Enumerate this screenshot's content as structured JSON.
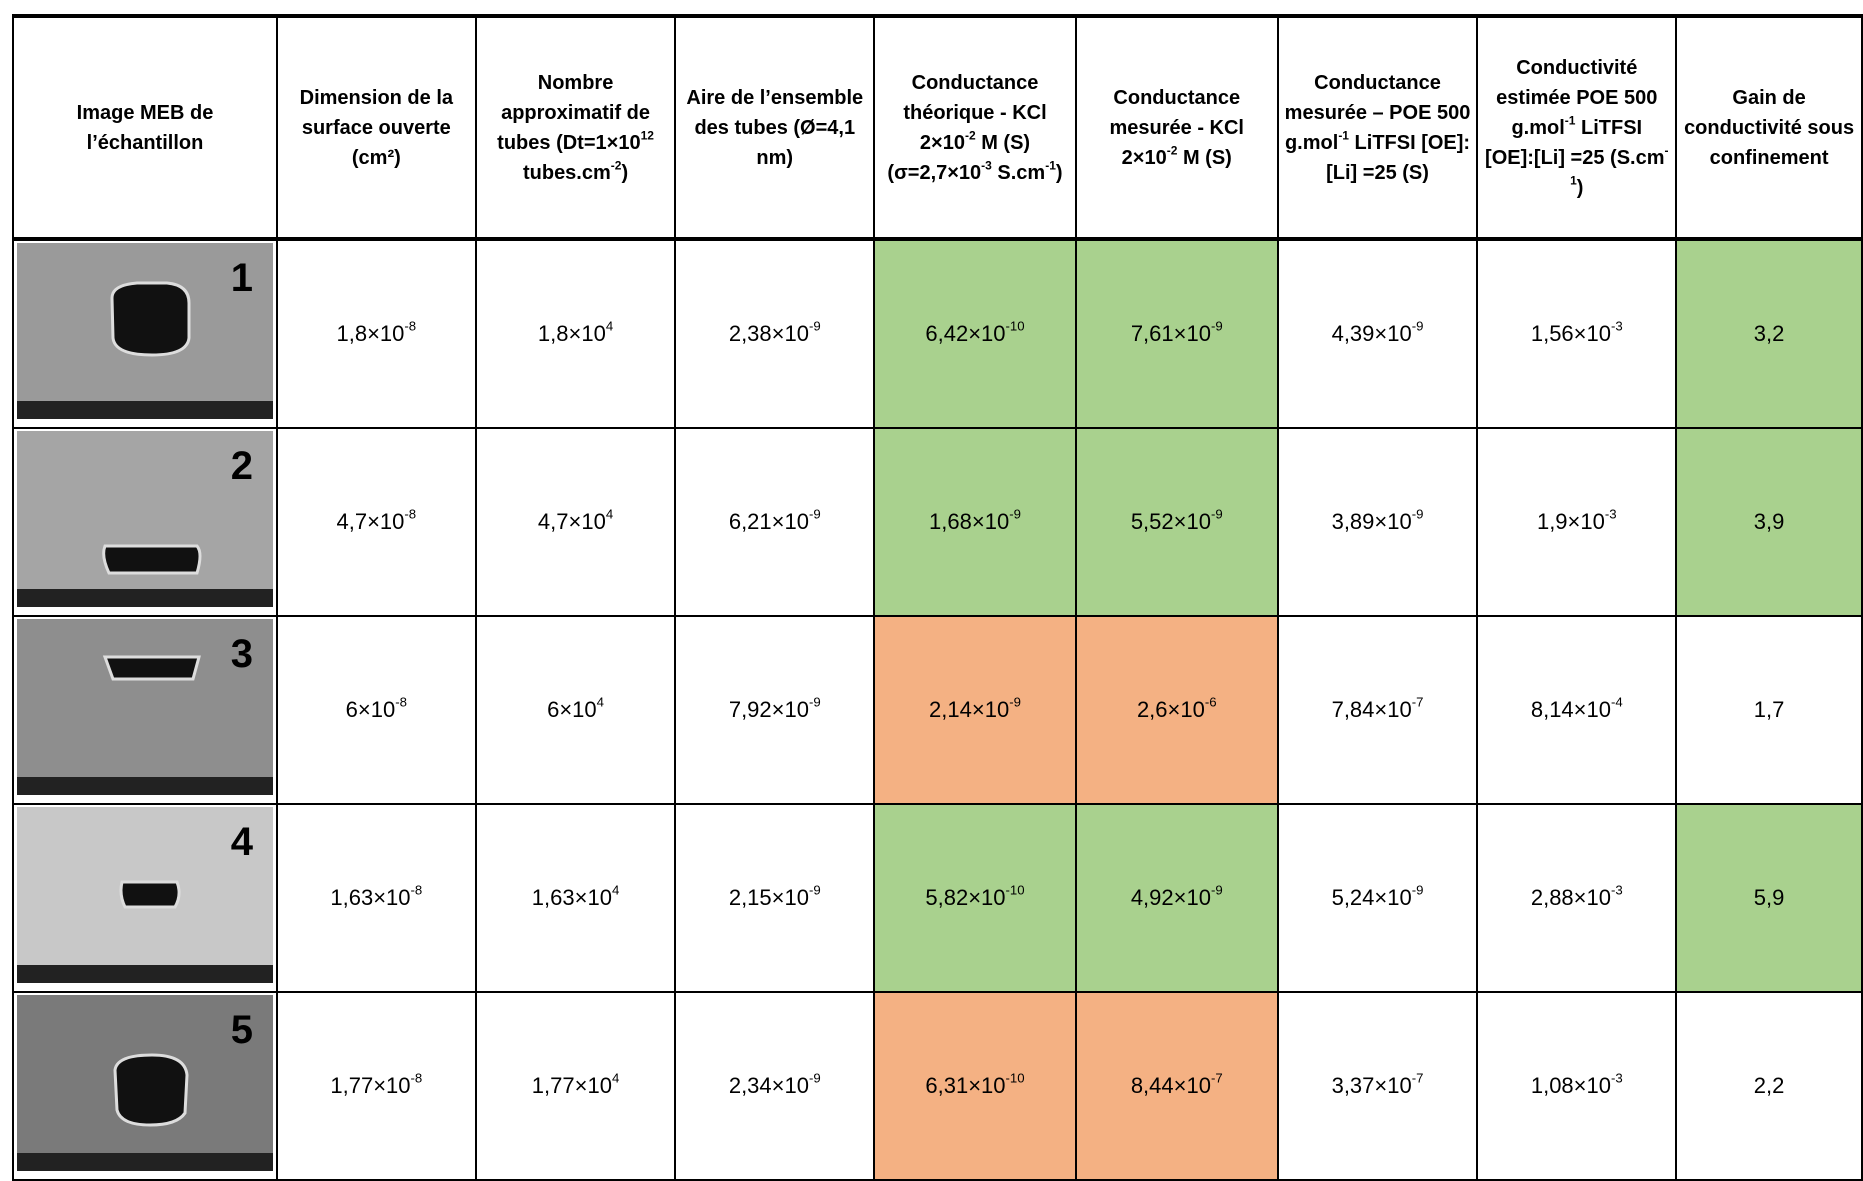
{
  "header": {
    "cells": [
      [
        "Image MEB de l’échantillon"
      ],
      [
        "Dimension de la surface ouverte (cm²)"
      ],
      [
        "Nombre approximatif de tubes (Dt=1×10",
        "12",
        " tubes.cm",
        "-2",
        ")"
      ],
      [
        "Aire de l’ensemble des tubes (Ø=4,1 nm)"
      ],
      [
        "Conductance théorique - KCl 2×10",
        "-2",
        " M (S) (σ=2,7×10",
        "-3",
        " S.cm",
        "-1",
        ")"
      ],
      [
        "Conductance mesurée -  KCl 2×10",
        "-2",
        " M (S)"
      ],
      [
        "Conductance mesurée – POE 500 g.mol",
        "-1",
        " LiTFSI [OE]:[Li] =25 (S)"
      ],
      [
        "Conductivité estimée POE 500 g.mol",
        "-1",
        " LiTFSI [OE]:[Li] =25 (S.cm",
        "-1",
        ")"
      ],
      [
        "Gain de conductivité sous confinement"
      ]
    ]
  },
  "table": {
    "rows": [
      {
        "image_label": "1",
        "highlight_color": "#a9d18e",
        "highlight_columns": [
          3,
          4,
          7
        ],
        "cells": [
          [
            "1,8×10",
            "-8"
          ],
          [
            "1,8×10",
            "4"
          ],
          [
            "2,38×10",
            "-9"
          ],
          [
            "6,42×10",
            "-10"
          ],
          [
            "7,61×10",
            "-9"
          ],
          [
            "4,39×10",
            "-9"
          ],
          [
            "1,56×10",
            "-3"
          ],
          [
            "3,2"
          ]
        ]
      },
      {
        "image_label": "2",
        "highlight_color": "#a9d18e",
        "highlight_columns": [
          3,
          4,
          7
        ],
        "cells": [
          [
            "4,7×10",
            "-8"
          ],
          [
            "4,7×10",
            "4"
          ],
          [
            "6,21×10",
            "-9"
          ],
          [
            "1,68×10",
            "-9"
          ],
          [
            "5,52×10",
            "-9"
          ],
          [
            "3,89×10",
            "-9"
          ],
          [
            "1,9×10",
            "-3"
          ],
          [
            "3,9"
          ]
        ]
      },
      {
        "image_label": "3",
        "highlight_color": "#f4b183",
        "highlight_columns": [
          3,
          4
        ],
        "cells": [
          [
            "6×10",
            "-8"
          ],
          [
            "6×10",
            "4"
          ],
          [
            "7,92×10",
            "-9"
          ],
          [
            "2,14×10",
            "-9"
          ],
          [
            "2,6×10",
            "-6"
          ],
          [
            "7,84×10",
            "-7"
          ],
          [
            "8,14×10",
            "-4"
          ],
          [
            "1,7"
          ]
        ]
      },
      {
        "image_label": "4",
        "highlight_color": "#a9d18e",
        "highlight_columns": [
          3,
          4,
          7
        ],
        "cells": [
          [
            "1,63×10",
            "-8"
          ],
          [
            "1,63×10",
            "4"
          ],
          [
            "2,15×10",
            "-9"
          ],
          [
            "5,82×10",
            "-10"
          ],
          [
            "4,92×10",
            "-9"
          ],
          [
            "5,24×10",
            "-9"
          ],
          [
            "2,88×10",
            "-3"
          ],
          [
            "5,9"
          ]
        ]
      },
      {
        "image_label": "5",
        "highlight_color": "#f4b183",
        "highlight_columns": [
          3,
          4
        ],
        "cells": [
          [
            "1,77×10",
            "-8"
          ],
          [
            "1,77×10",
            "4"
          ],
          [
            "2,34×10",
            "-9"
          ],
          [
            "6,31×10",
            "-10"
          ],
          [
            "8,44×10",
            "-7"
          ],
          [
            "3,37×10",
            "-7"
          ],
          [
            "1,08×10",
            "-3"
          ],
          [
            "2,2"
          ]
        ]
      }
    ]
  }
}
